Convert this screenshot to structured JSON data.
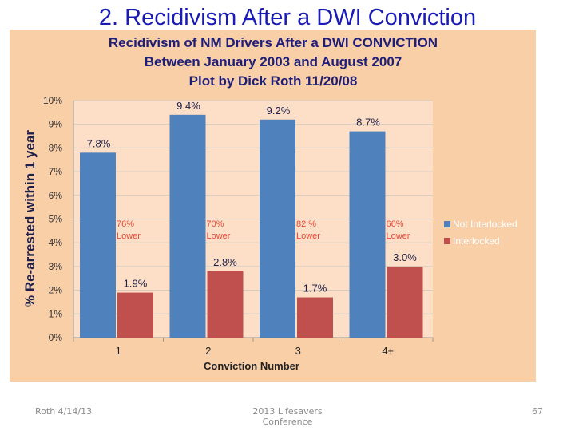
{
  "slide": {
    "title": "2. Recidivism After a DWI Conviction",
    "footer_left": "Roth 4/14/13",
    "footer_center": "2013 Lifesavers Conference",
    "footer_right": "67"
  },
  "chart_data": {
    "type": "bar",
    "title_lines": [
      "Recidivism of NM Drivers After a DWI CONVICTION",
      "Between January 2003 and August 2007",
      "Plot by Dick Roth  11/20/08"
    ],
    "xlabel": "Conviction Number",
    "ylabel": "% Re-arrested within 1 year",
    "categories": [
      "1",
      "2",
      "3",
      "4+"
    ],
    "ylim": [
      0,
      10
    ],
    "yticks": [
      "0%",
      "1%",
      "2%",
      "3%",
      "4%",
      "5%",
      "6%",
      "7%",
      "8%",
      "9%",
      "10%"
    ],
    "grid": true,
    "legend_position": "right",
    "series": [
      {
        "name": "Not Interlocked",
        "color": "#4f81bd",
        "values": [
          7.8,
          9.4,
          9.2,
          8.7
        ],
        "labels": [
          "7.8%",
          "9.4%",
          "9.2%",
          "8.7%"
        ]
      },
      {
        "name": "Interlocked",
        "color": "#c0504d",
        "values": [
          1.9,
          2.8,
          1.7,
          3.0
        ],
        "labels": [
          "1.9%",
          "2.8%",
          "1.7%",
          "3.0%"
        ]
      }
    ],
    "annotations": [
      {
        "line1": "76%",
        "line2": "Lower"
      },
      {
        "line1": "70%",
        "line2": "Lower"
      },
      {
        "line1": "82 %",
        "line2": "Lower"
      },
      {
        "line1": "66%",
        "line2": "Lower"
      }
    ],
    "annotation_color": "#e8493a"
  }
}
